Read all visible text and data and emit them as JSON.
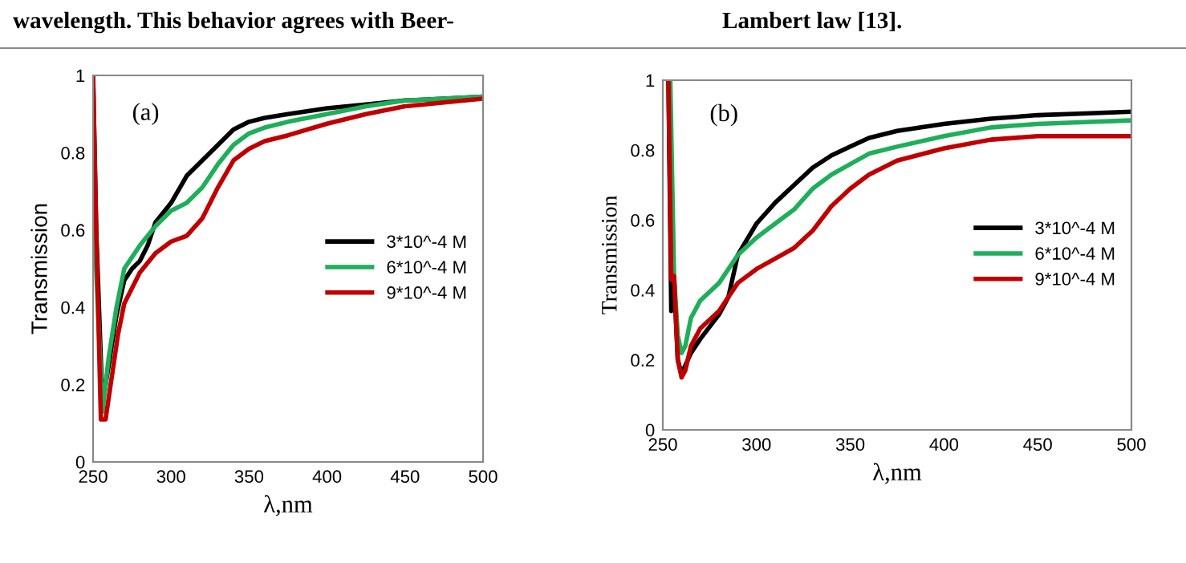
{
  "chart_data": [
    {
      "type": "line",
      "xlabel": "λ,nm",
      "ylabel": "Transmission",
      "annotations": [
        "wavelength. This behavior agrees with Beer-",
        "(a)"
      ],
      "xlim": [
        250,
        500
      ],
      "ylim": [
        0,
        1
      ],
      "xticks": [
        250,
        300,
        350,
        400,
        450,
        500
      ],
      "yticks": [
        0,
        0.2,
        0.4,
        0.6,
        0.8,
        1
      ],
      "grid": false,
      "legend": "right",
      "marker": "none",
      "line_style": "solid",
      "series": [
        {
          "name": "3*10^-4 M",
          "color": "#000000",
          "x": [
            250,
            252,
            256,
            260,
            265,
            270,
            275,
            280,
            285,
            290,
            300,
            310,
            320,
            330,
            340,
            350,
            360,
            375,
            400,
            425,
            450,
            475,
            500
          ],
          "values": [
            1.0,
            0.6,
            0.15,
            0.25,
            0.38,
            0.47,
            0.5,
            0.52,
            0.56,
            0.62,
            0.67,
            0.74,
            0.78,
            0.82,
            0.86,
            0.88,
            0.89,
            0.9,
            0.915,
            0.925,
            0.935,
            0.94,
            0.945
          ]
        },
        {
          "name": "6*10^-4 M",
          "color": "#1fae5a",
          "x": [
            250,
            252,
            256,
            260,
            265,
            270,
            280,
            290,
            300,
            310,
            320,
            330,
            340,
            350,
            360,
            375,
            400,
            425,
            450,
            475,
            500
          ],
          "values": [
            1.0,
            0.5,
            0.13,
            0.27,
            0.4,
            0.5,
            0.56,
            0.61,
            0.65,
            0.67,
            0.71,
            0.77,
            0.82,
            0.85,
            0.865,
            0.88,
            0.9,
            0.92,
            0.935,
            0.94,
            0.945
          ]
        },
        {
          "name": "9*10^-4 M",
          "color": "#c00000",
          "x": [
            250,
            252,
            255,
            258,
            262,
            266,
            270,
            280,
            290,
            300,
            310,
            320,
            330,
            340,
            350,
            360,
            375,
            400,
            425,
            450,
            475,
            500
          ],
          "values": [
            1.0,
            0.6,
            0.11,
            0.11,
            0.22,
            0.33,
            0.41,
            0.49,
            0.54,
            0.57,
            0.585,
            0.63,
            0.71,
            0.78,
            0.81,
            0.83,
            0.845,
            0.875,
            0.9,
            0.92,
            0.93,
            0.94
          ]
        }
      ]
    },
    {
      "type": "line",
      "xlabel": "λ,nm",
      "ylabel": "Transmission",
      "annotations": [
        "Lambert law [13].",
        "(b)"
      ],
      "xlim": [
        250,
        500
      ],
      "ylim": [
        0,
        1
      ],
      "xticks": [
        250,
        300,
        350,
        400,
        450,
        500
      ],
      "yticks": [
        0,
        0.2,
        0.4,
        0.6,
        0.8,
        1
      ],
      "grid": false,
      "legend": "right",
      "marker": "none",
      "line_style": "solid",
      "series": [
        {
          "name": "3*10^-4 M",
          "color": "#000000",
          "x": [
            253,
            254.5,
            256,
            258,
            260,
            265,
            270,
            280,
            285,
            290,
            300,
            310,
            320,
            330,
            340,
            350,
            360,
            375,
            400,
            425,
            450,
            475,
            500
          ],
          "values": [
            1.0,
            0.34,
            0.43,
            0.2,
            0.16,
            0.22,
            0.26,
            0.33,
            0.38,
            0.5,
            0.59,
            0.65,
            0.7,
            0.75,
            0.785,
            0.81,
            0.835,
            0.855,
            0.875,
            0.89,
            0.9,
            0.905,
            0.91
          ]
        },
        {
          "name": "6*10^-4 M",
          "color": "#1fae5a",
          "x": [
            254,
            256,
            258,
            260,
            262,
            265,
            270,
            280,
            290,
            300,
            310,
            320,
            330,
            340,
            350,
            360,
            375,
            400,
            425,
            450,
            475,
            500
          ],
          "values": [
            1.0,
            0.44,
            0.27,
            0.22,
            0.24,
            0.32,
            0.37,
            0.42,
            0.5,
            0.55,
            0.59,
            0.63,
            0.69,
            0.73,
            0.76,
            0.79,
            0.81,
            0.84,
            0.865,
            0.875,
            0.88,
            0.885
          ]
        },
        {
          "name": "9*10^-4 M",
          "color": "#c00000",
          "x": [
            253,
            254.5,
            256,
            258,
            260,
            262,
            265,
            270,
            280,
            290,
            300,
            310,
            320,
            330,
            340,
            350,
            360,
            375,
            400,
            425,
            450,
            475,
            500
          ],
          "values": [
            1.0,
            0.43,
            0.44,
            0.2,
            0.15,
            0.17,
            0.24,
            0.29,
            0.34,
            0.42,
            0.46,
            0.49,
            0.52,
            0.57,
            0.64,
            0.69,
            0.73,
            0.77,
            0.805,
            0.83,
            0.84,
            0.84,
            0.84
          ]
        }
      ]
    }
  ]
}
